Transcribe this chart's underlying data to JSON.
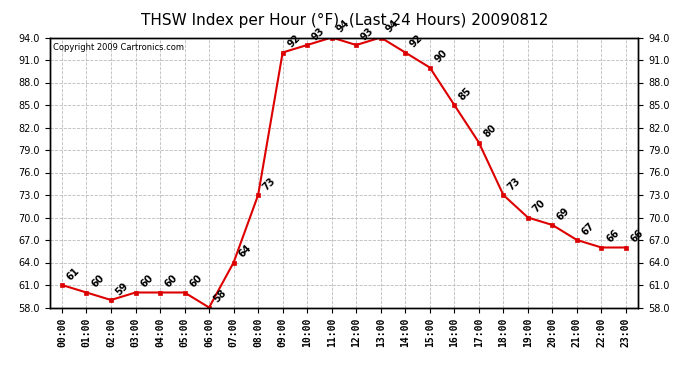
{
  "title": "THSW Index per Hour (°F)  (Last 24 Hours) 20090812",
  "copyright": "Copyright 2009 Cartronics.com",
  "hours": [
    "00:00",
    "01:00",
    "02:00",
    "03:00",
    "04:00",
    "05:00",
    "06:00",
    "07:00",
    "08:00",
    "09:00",
    "10:00",
    "11:00",
    "12:00",
    "13:00",
    "14:00",
    "15:00",
    "16:00",
    "17:00",
    "18:00",
    "19:00",
    "20:00",
    "21:00",
    "22:00",
    "23:00"
  ],
  "values": [
    61,
    60,
    59,
    60,
    60,
    60,
    58,
    64,
    73,
    92,
    93,
    94,
    93,
    94,
    92,
    90,
    85,
    80,
    73,
    70,
    69,
    67,
    66,
    66
  ],
  "yticks": [
    58.0,
    61.0,
    64.0,
    67.0,
    70.0,
    73.0,
    76.0,
    79.0,
    82.0,
    85.0,
    88.0,
    91.0,
    94.0
  ],
  "line_color": "#dd0000",
  "marker_color": "#dd0000",
  "bg_color": "#ffffff",
  "grid_color": "#aaaaaa",
  "title_color": "#000000",
  "label_color": "#000000",
  "title_fontsize": 11,
  "tick_fontsize": 7,
  "annotation_fontsize": 7,
  "copyright_fontsize": 6
}
